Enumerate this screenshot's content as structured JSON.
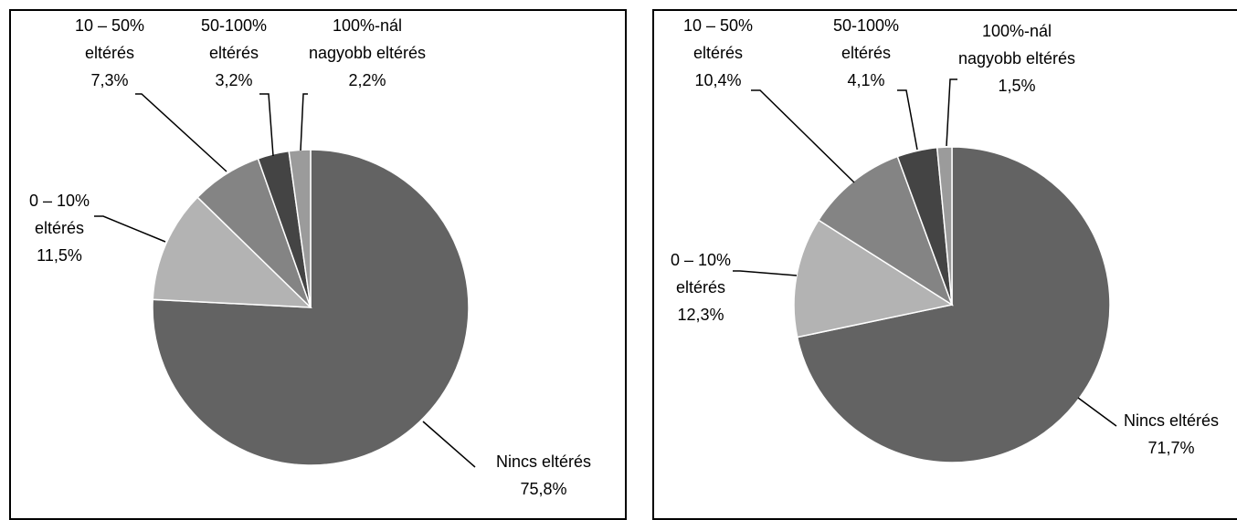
{
  "chart_data": [
    {
      "type": "pie",
      "slices": [
        {
          "label": [
            "Nincs eltérés"
          ],
          "value": 75.8,
          "pct": "75,8%",
          "color": "#636363"
        },
        {
          "label": [
            "0 – 10%",
            "eltérés"
          ],
          "value": 11.5,
          "pct": "11,5%",
          "color": "#b3b3b3"
        },
        {
          "label": [
            "10 – 50%",
            "eltérés"
          ],
          "value": 7.3,
          "pct": "7,3%",
          "color": "#848484"
        },
        {
          "label": [
            "50-100%",
            "eltérés"
          ],
          "value": 3.2,
          "pct": "3,2%",
          "color": "#444444"
        },
        {
          "label": [
            "100%-nál",
            "nagyobb eltérés"
          ],
          "value": 2.2,
          "pct": "2,2%",
          "color": "#9b9b9b"
        }
      ]
    },
    {
      "type": "pie",
      "slices": [
        {
          "label": [
            "Nincs eltérés"
          ],
          "value": 71.7,
          "pct": "71,7%",
          "color": "#636363"
        },
        {
          "label": [
            "0 – 10%",
            "eltérés"
          ],
          "value": 12.3,
          "pct": "12,3%",
          "color": "#b3b3b3"
        },
        {
          "label": [
            "10 – 50%",
            "eltérés"
          ],
          "value": 10.4,
          "pct": "10,4%",
          "color": "#848484"
        },
        {
          "label": [
            "50-100%",
            "eltérés"
          ],
          "value": 4.1,
          "pct": "4,1%",
          "color": "#444444"
        },
        {
          "label": [
            "100%-nál",
            "nagyobb eltérés"
          ],
          "value": 1.5,
          "pct": "1,5%",
          "color": "#9b9b9b"
        }
      ]
    }
  ]
}
